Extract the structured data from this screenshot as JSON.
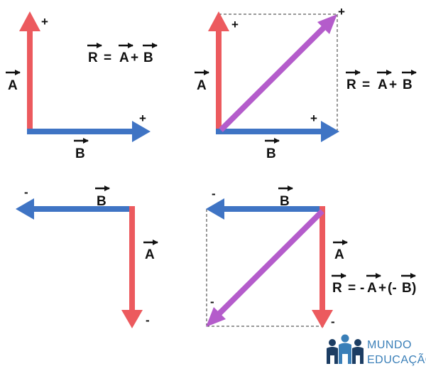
{
  "colors": {
    "vector_a": "#ec5a5e",
    "vector_b": "#3f74c4",
    "resultant": "#b45ccb",
    "text": "#111111",
    "frame": "#333333",
    "brand_dark": "#1c3d63",
    "brand_light": "#3a7fb8"
  },
  "labels": {
    "vec_a": "A",
    "vec_b": "B",
    "vec_r": "R",
    "plus": "+",
    "minus": "-"
  },
  "diagrams": {
    "top_left": {
      "formula": {
        "r": "R",
        "eq": "=",
        "a": "A",
        "op": "+",
        "b": "B"
      }
    },
    "top_right": {
      "formula": {
        "r": "R",
        "eq": "=",
        "a": "A",
        "op": "+",
        "b": "B"
      }
    },
    "bottom_left": {},
    "bottom_right": {
      "formula": {
        "r": "R",
        "eq": "=",
        "neg": "-",
        "a": "A",
        "op": "+",
        "open": "(-",
        "b": "B",
        "close": ")"
      }
    }
  },
  "brand": {
    "line1": "MUNDO",
    "line2": "EDUCAÇÃO",
    "logo_icon": "people-group-icon"
  }
}
